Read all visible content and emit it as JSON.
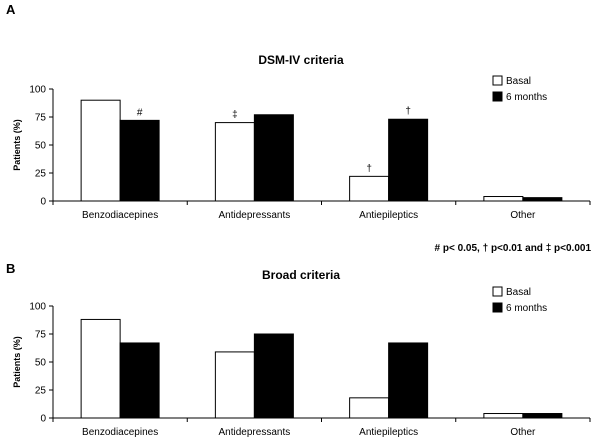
{
  "footnote": "# p< 0.05, † p<0.01 and ‡ p<0.001",
  "chart_data": [
    {
      "panel": "A",
      "type": "bar",
      "title": "DSM-IV criteria",
      "ylabel": "Patients (%)",
      "xlabel": "",
      "ylim": [
        0,
        100
      ],
      "yticks": [
        0,
        25,
        50,
        75,
        100
      ],
      "categories": [
        "Benzodiacepines",
        "Antidepressants",
        "Antiepileptics",
        "Other"
      ],
      "series": [
        {
          "name": "Basal",
          "color": "#ffffff",
          "values": [
            90,
            70,
            22,
            4
          ]
        },
        {
          "name": "6 months",
          "color": "#000000",
          "values": [
            72,
            77,
            73,
            3
          ]
        }
      ],
      "annotations": [
        {
          "category": 0,
          "series": 1,
          "text": "#"
        },
        {
          "category": 1,
          "series": 0,
          "text": "‡"
        },
        {
          "category": 2,
          "series": 0,
          "text": "†"
        },
        {
          "category": 2,
          "series": 1,
          "text": "†"
        }
      ],
      "legend_position": "top-right",
      "grid": false
    },
    {
      "panel": "B",
      "type": "bar",
      "title": "Broad criteria",
      "ylabel": "Patients (%)",
      "xlabel": "",
      "ylim": [
        0,
        100
      ],
      "yticks": [
        0,
        25,
        50,
        75,
        100
      ],
      "categories": [
        "Benzodiacepines",
        "Antidepressants",
        "Antiepileptics",
        "Other"
      ],
      "series": [
        {
          "name": "Basal",
          "color": "#ffffff",
          "values": [
            88,
            59,
            18,
            4
          ]
        },
        {
          "name": "6 months",
          "color": "#000000",
          "values": [
            67,
            75,
            67,
            4
          ]
        }
      ],
      "annotations": [],
      "legend_position": "top-right",
      "grid": false
    }
  ]
}
